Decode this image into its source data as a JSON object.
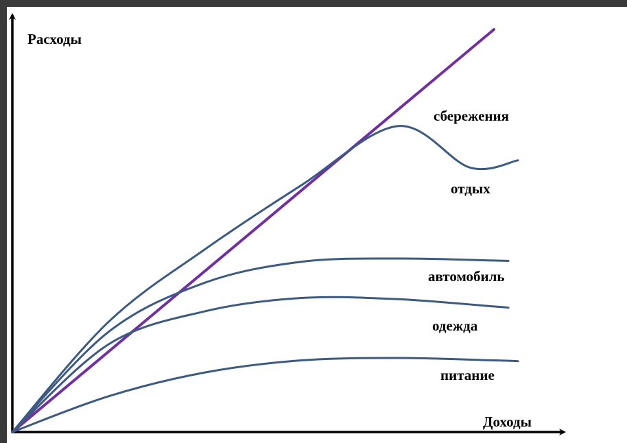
{
  "chart_data": {
    "type": "line",
    "xlabel": "Доходы",
    "ylabel": "Расходы",
    "grid": false,
    "xlim": [
      0,
      100
    ],
    "ylim": [
      0,
      100
    ],
    "total": {
      "color": "#7030a0",
      "x": [
        0,
        100
      ],
      "y": [
        0,
        100
      ]
    },
    "series": [
      {
        "name": "питание",
        "color": "#3d5a80",
        "x": [
          0,
          20,
          40,
          60,
          80,
          100,
          105
        ],
        "y": [
          0,
          8.9,
          14.8,
          17.8,
          18.4,
          17.8,
          17.6
        ]
      },
      {
        "name": "одежда",
        "color": "#3d5a80",
        "x": [
          0,
          20,
          40,
          60,
          80,
          100,
          103
        ],
        "y": [
          0,
          21.8,
          30.0,
          33.3,
          33.0,
          31.2,
          30.9
        ]
      },
      {
        "name": "автомобиль",
        "color": "#3d5a80",
        "x": [
          0,
          20,
          40,
          60,
          80,
          100,
          103
        ],
        "y": [
          0,
          24.9,
          37.1,
          42.3,
          43.1,
          42.6,
          42.5
        ]
      },
      {
        "name": "отдых",
        "color": "#3d5a80",
        "x": [
          0,
          20,
          40,
          60,
          80,
          95,
          105
        ],
        "y": [
          0,
          27.4,
          45.4,
          61.3,
          76.0,
          65.7,
          67.5
        ]
      }
    ]
  }
}
